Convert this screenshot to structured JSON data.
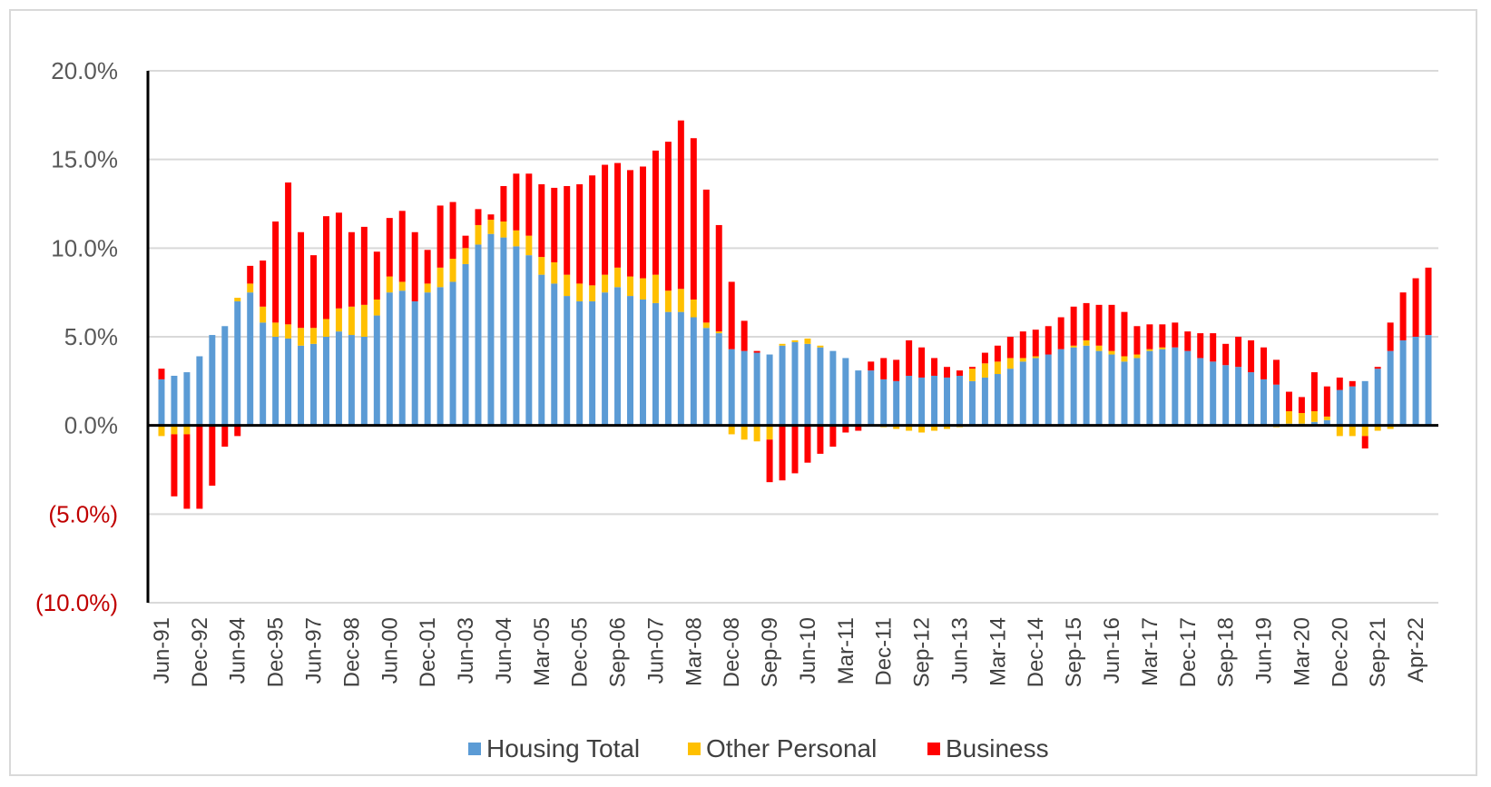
{
  "chart_data": {
    "type": "bar",
    "stacked": true,
    "yaxis": {
      "min": -10,
      "max": 20,
      "ticks": [
        20,
        15,
        10,
        5,
        0,
        -5,
        -10
      ],
      "tick_labels": [
        "20.0%",
        "15.0%",
        "10.0%",
        "5.0%",
        "0.0%",
        "(5.0%)",
        "(10.0%)"
      ],
      "negative_label_color": "#c00000",
      "positive_label_color": "#595959",
      "grid": true
    },
    "xaxis": {
      "tick_labels": [
        "Jun-91",
        "Dec-92",
        "Jun-94",
        "Dec-95",
        "Jun-97",
        "Dec-98",
        "Jun-00",
        "Dec-01",
        "Jun-03",
        "Jun-04",
        "Mar-05",
        "Dec-05",
        "Sep-06",
        "Jun-07",
        "Mar-08",
        "Dec-08",
        "Sep-09",
        "Jun-10",
        "Mar-11",
        "Dec-11",
        "Sep-12",
        "Jun-13",
        "Mar-14",
        "Dec-14",
        "Sep-15",
        "Jun-16",
        "Mar-17",
        "Dec-17",
        "Sep-18",
        "Jun-19",
        "Mar-20",
        "Dec-20",
        "Sep-21",
        "Apr-22"
      ],
      "tick_bar_index": [
        0,
        3,
        6,
        9,
        12,
        15,
        18,
        21,
        24,
        27,
        30,
        33,
        36,
        39,
        42,
        45,
        48,
        51,
        54,
        57,
        60,
        63,
        66,
        69,
        72,
        75,
        78,
        81,
        84,
        87,
        90,
        93,
        96,
        99
      ]
    },
    "legend": {
      "placement": "bottom"
    },
    "series": [
      {
        "name": "Housing Total",
        "color": "#5b9bd5",
        "values": [
          2.6,
          2.8,
          3.0,
          3.9,
          5.1,
          5.6,
          7.0,
          7.5,
          5.8,
          5.0,
          4.9,
          4.5,
          4.6,
          5.0,
          5.3,
          5.1,
          5.0,
          6.2,
          7.5,
          7.6,
          7.0,
          7.5,
          7.8,
          8.1,
          9.1,
          10.2,
          10.8,
          10.6,
          10.1,
          9.6,
          8.5,
          8.0,
          7.3,
          7.0,
          7.0,
          7.5,
          7.8,
          7.3,
          7.1,
          6.9,
          6.4,
          6.4,
          6.1,
          5.5,
          5.2,
          4.3,
          4.2,
          4.1,
          4.0,
          4.5,
          4.7,
          4.6,
          4.4,
          4.2,
          3.8,
          3.1,
          3.1,
          2.6,
          2.5,
          2.8,
          2.7,
          2.8,
          2.7,
          2.8,
          2.5,
          2.7,
          2.9,
          3.2,
          3.6,
          3.8,
          4.0,
          4.3,
          4.4,
          4.5,
          4.2,
          4.0,
          3.6,
          3.8,
          4.2,
          4.3,
          4.4,
          4.2,
          3.8,
          3.6,
          3.4,
          3.3,
          3.0,
          2.6,
          2.3,
          0.1,
          0.1,
          0.2,
          0.3,
          2.0,
          2.2,
          2.5,
          3.2,
          4.2,
          4.8,
          5.0,
          5.1
        ]
      },
      {
        "name": "Other Personal",
        "color": "#ffc000",
        "values": [
          -0.6,
          -0.5,
          -0.5,
          0,
          0,
          0,
          0.2,
          0.5,
          0.9,
          0.8,
          0.8,
          1.0,
          0.9,
          1.0,
          1.3,
          1.6,
          1.8,
          0.9,
          0.9,
          0.5,
          0,
          0.5,
          1.1,
          1.3,
          0.9,
          1.1,
          0.8,
          0.9,
          0.9,
          1.1,
          1.0,
          1.2,
          1.2,
          1.0,
          0.9,
          1.0,
          1.1,
          1.1,
          1.2,
          1.6,
          1.2,
          1.3,
          1.0,
          0.3,
          0.1,
          -0.5,
          -0.8,
          -0.9,
          -0.8,
          0.1,
          0.1,
          0.3,
          0.1,
          0,
          0,
          0,
          0,
          -0.1,
          -0.2,
          -0.3,
          -0.4,
          -0.3,
          -0.2,
          -0.1,
          0.7,
          0.8,
          0.7,
          0.6,
          0.2,
          0.1,
          0,
          0,
          0.1,
          0.3,
          0.3,
          0.2,
          0.3,
          0.2,
          0.1,
          0.1,
          0,
          0,
          0,
          0,
          0,
          0,
          0,
          0,
          -0.1,
          0.7,
          0.6,
          0.6,
          0.2,
          -0.6,
          -0.6,
          -0.6,
          -0.3,
          -0.2,
          0,
          0,
          0
        ],
        "negative_stack_order": 0
      },
      {
        "name": "Business",
        "color": "#ff0000",
        "values": [
          0.6,
          -3.5,
          -4.2,
          -4.7,
          -3.4,
          -1.2,
          -0.6,
          1.0,
          2.6,
          5.7,
          8.0,
          5.4,
          4.1,
          5.8,
          5.4,
          4.2,
          4.4,
          2.7,
          3.3,
          4.0,
          3.9,
          1.9,
          3.5,
          3.2,
          0.7,
          0.9,
          0.3,
          2.0,
          3.2,
          3.5,
          4.1,
          4.2,
          5.0,
          5.6,
          6.2,
          6.2,
          5.9,
          6.0,
          6.3,
          7.0,
          8.4,
          9.5,
          9.1,
          7.5,
          6.0,
          3.8,
          1.7,
          0.1,
          -2.4,
          -3.1,
          -2.7,
          -2.1,
          -1.6,
          -1.2,
          -0.4,
          -0.3,
          0.5,
          1.2,
          1.2,
          2.0,
          1.7,
          1.0,
          0.6,
          0.3,
          0.1,
          0.6,
          0.9,
          1.2,
          1.5,
          1.5,
          1.6,
          1.8,
          2.2,
          2.1,
          2.3,
          2.6,
          2.5,
          1.6,
          1.4,
          1.3,
          1.4,
          1.1,
          1.4,
          1.6,
          1.2,
          1.7,
          1.8,
          1.8,
          1.4,
          1.1,
          0.9,
          2.2,
          1.7,
          0.7,
          0.3,
          -0.7,
          0.1,
          1.6,
          2.7,
          3.3,
          3.8
        ]
      }
    ]
  }
}
